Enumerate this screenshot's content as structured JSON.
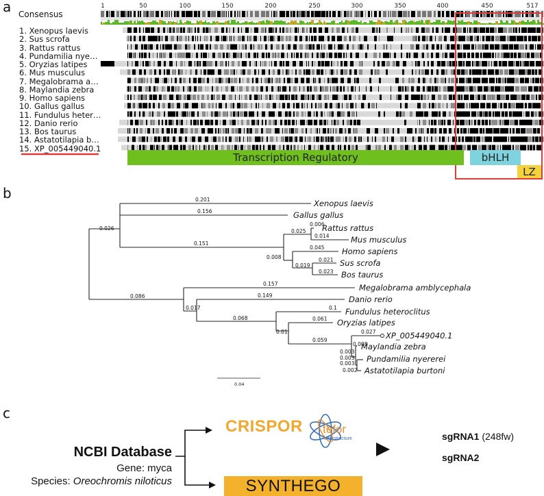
{
  "panel_a": {
    "letter": "a",
    "consensus_label": "Consensus",
    "positions": [
      "1",
      "50",
      "100",
      "150",
      "200",
      "250",
      "300",
      "350",
      "400",
      "450",
      "517"
    ],
    "sequences": [
      "1. Xenopus laevis",
      "2. Sus scrofa",
      "3. Rattus rattus",
      "4. Pundamilia nye…",
      "5. Oryzias latipes",
      "6. Mus musculus",
      "7. Megalobrama a…",
      "8. Maylandia zebra",
      "9. Homo sapiens",
      "10. Gallus gallus",
      "11. Fundulus heter…",
      "12. Danio rerio",
      "13. Bos taurus",
      "14. Astatotilapia b…",
      "15. XP_005449040.1"
    ],
    "domains": {
      "transcription_regulatory": "Transcription Regulatory",
      "bhlh": "bHLH",
      "lz": "LZ"
    },
    "colors": {
      "transcription_regulatory": "#6fbf1f",
      "bhlh": "#7fd3de",
      "lz": "#f3d23c",
      "highlight_box": "#e03a3a",
      "underline": "#e03a3a",
      "consensus_green": "#5cb82a"
    }
  },
  "panel_b": {
    "letter": "b",
    "taxa": {
      "xenopus": "Xenopus laevis",
      "gallus": "Gallus gallus",
      "rattus": "Rattus rattus",
      "mus": "Mus musculus",
      "homo": "Homo sapiens",
      "sus": "Sus scrofa",
      "bos": "Bos taurus",
      "megalobrama": "Megalobrama amblycephala",
      "danio": "Danio rerio",
      "fundulus": "Fundulus heteroclitus",
      "oryzias": "Oryzias latipes",
      "xp": "XP_005449040.1",
      "maylandia": "Maylandia zebra",
      "pundamilia": "Pundamilia nyererei",
      "astatotilapia": "Astatotilapia burtoni"
    },
    "branch_lengths": {
      "xenopus": "0.201",
      "tetrapods": "0.026",
      "gallus": "0.156",
      "mammals": "0.151",
      "rodents": "0.025",
      "rattus": "0.006",
      "mus": "0.014",
      "primate_ungulate": "0.008",
      "homo": "0.045",
      "ungulates": "0.019",
      "sus": "0.021",
      "bos": "0.023",
      "fish": "0.086",
      "megalobrama": "0.157",
      "fish_inner": "0.017",
      "danio": "0.149",
      "fund_oryz_cichlid": "0.068",
      "fundulus": "0.1",
      "oryz_cichlid": "0.01",
      "oryzias": "0.061",
      "cichlids": "0.059",
      "xp": "0.027",
      "cichlid_inner": "0.008",
      "maylandia": "0.003",
      "pundamilia_clade": "0.003",
      "pundamilia": "0.003",
      "astatotilapia": "0.002"
    },
    "scale_bar": "0.04"
  },
  "panel_c": {
    "letter": "c",
    "database_title": "NCBI Database",
    "gene_line": "Gene: myca",
    "species_prefix": "Species: ",
    "species_name": "Oreochromis niloticus",
    "crispor_label": "CRISPOR",
    "tefor_label": "tefor",
    "tefor_sub": "infrastructure",
    "synthego_label": "SYNTHEGO",
    "sgrna1_label": "sgRNA1",
    "sgrna1_detail": "(248fw)",
    "sgrna2_label": "sgRNA2",
    "colors": {
      "crispor": "#f0a830",
      "synthego_bg": "#f3b12c",
      "tefor_blue": "#3b6fb6",
      "tefor_orange": "#e8902a"
    }
  }
}
